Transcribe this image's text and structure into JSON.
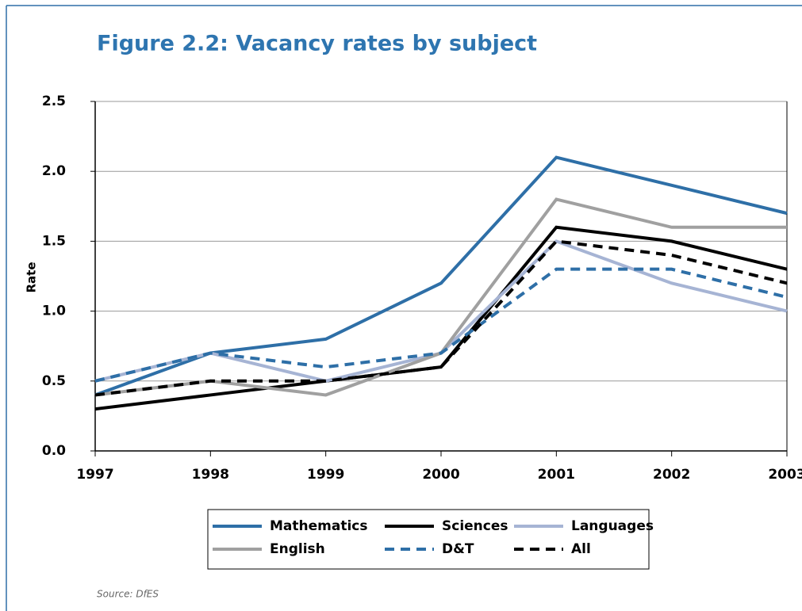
{
  "chart_data": {
    "type": "line",
    "title": "Figure 2.2: Vacancy rates by subject",
    "y_label": "Rate",
    "source": "Source: DfES",
    "categories": [
      "1997",
      "1998",
      "1999",
      "2000",
      "2001",
      "2002",
      "2003"
    ],
    "series": [
      {
        "name": "Mathematics",
        "color": "#2e6fa7",
        "dashed": false,
        "values": [
          0.4,
          0.7,
          0.8,
          1.2,
          2.1,
          1.9,
          1.7
        ]
      },
      {
        "name": "Sciences",
        "color": "#000000",
        "dashed": false,
        "values": [
          0.3,
          0.4,
          0.5,
          0.6,
          1.6,
          1.5,
          1.3
        ]
      },
      {
        "name": "Languages",
        "color": "#a6b4d4",
        "dashed": false,
        "values": [
          0.5,
          0.7,
          0.5,
          0.7,
          1.5,
          1.2,
          1.0
        ]
      },
      {
        "name": "English",
        "color": "#a0a0a0",
        "dashed": false,
        "values": [
          0.4,
          0.5,
          0.4,
          0.7,
          1.8,
          1.6,
          1.6
        ]
      },
      {
        "name": "D&T",
        "color": "#2e6fa7",
        "dashed": true,
        "values": [
          0.5,
          0.7,
          0.6,
          0.7,
          1.3,
          1.3,
          1.1
        ]
      },
      {
        "name": "All",
        "color": "#000000",
        "dashed": true,
        "values": [
          0.4,
          0.5,
          0.5,
          0.6,
          1.5,
          1.4,
          1.2
        ]
      }
    ],
    "ylim": [
      0,
      2.5
    ],
    "yticks": [
      {
        "value": 0,
        "label": "0.0"
      },
      0.5,
      {
        "value": 1,
        "label": "1.0"
      },
      1.5,
      {
        "value": 2,
        "label": "2.0"
      },
      2.5
    ],
    "grid": true,
    "legend": "bottom"
  }
}
